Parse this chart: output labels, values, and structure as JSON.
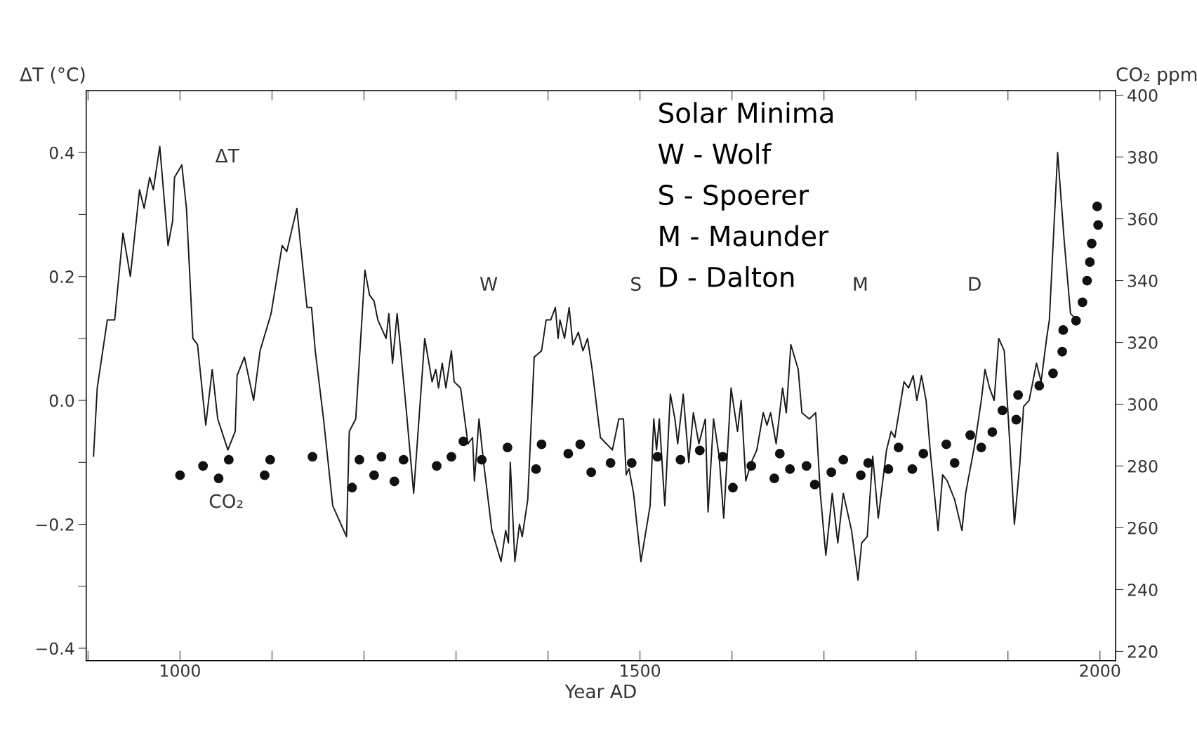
{
  "chart_data": {
    "type": "line",
    "xlabel": "Year AD",
    "ylabel": "ΔT (°C)",
    "y2label": "CO₂ ppm",
    "xlim": [
      898,
      2017
    ],
    "xticks": [
      {
        "value": 900,
        "label": null
      },
      1000,
      {
        "value": 1100,
        "label": null
      },
      {
        "value": 1200,
        "label": null
      },
      {
        "value": 1300,
        "label": null
      },
      {
        "value": 1400,
        "label": null
      },
      1500,
      {
        "value": 1600,
        "label": null
      },
      {
        "value": 1700,
        "label": null
      },
      {
        "value": 1800,
        "label": null
      },
      {
        "value": 1900,
        "label": null
      },
      2000
    ],
    "ylim": [
      -0.42,
      0.5
    ],
    "yticks": [
      {
        "value": -0.4,
        "label": "−0.4"
      },
      {
        "value": -0.3,
        "label": null
      },
      {
        "value": -0.2,
        "label": "−0.2"
      },
      {
        "value": -0.1,
        "label": null
      },
      {
        "value": 0.0,
        "label": "0.0"
      },
      {
        "value": 0.1,
        "label": null
      },
      {
        "value": 0.2,
        "label": "0.2"
      },
      {
        "value": 0.3,
        "label": null
      },
      {
        "value": 0.4,
        "label": "0.4"
      }
    ],
    "y2lim": [
      217,
      401.5
    ],
    "y2ticks": [
      220,
      240,
      260,
      280,
      300,
      320,
      340,
      360,
      380,
      400
    ],
    "grid": false,
    "legend": false,
    "series": [
      {
        "name": "ΔT",
        "color": "#1a1a1a",
        "line_style": "solid",
        "marker": "none",
        "x": [
          906,
          910,
          921,
          929,
          938,
          946,
          956,
          961,
          967,
          971,
          978,
          987,
          992,
          994,
          1002,
          1007,
          1014,
          1019,
          1028,
          1035,
          1041,
          1052,
          1060,
          1062,
          1070,
          1080,
          1087,
          1099,
          1111,
          1116,
          1127,
          1138,
          1143,
          1147,
          1156,
          1166,
          1181,
          1184,
          1191,
          1201,
          1206,
          1211,
          1215,
          1224,
          1227,
          1231,
          1236,
          1245,
          1254,
          1266,
          1274,
          1278,
          1281,
          1285,
          1289,
          1295,
          1298,
          1305,
          1313,
          1318,
          1320,
          1325,
          1330,
          1339,
          1349,
          1354,
          1357,
          1359,
          1364,
          1369,
          1372,
          1378,
          1385,
          1393,
          1398,
          1403,
          1408,
          1411,
          1413,
          1418,
          1423,
          1427,
          1433,
          1438,
          1443,
          1448,
          1457,
          1470,
          1477,
          1482,
          1485,
          1488,
          1493,
          1501,
          1511,
          1515,
          1518,
          1521,
          1527,
          1533,
          1538,
          1541,
          1547,
          1553,
          1558,
          1564,
          1571,
          1574,
          1580,
          1586,
          1591,
          1599,
          1606,
          1610,
          1615,
          1621,
          1627,
          1634,
          1638,
          1642,
          1648,
          1655,
          1659,
          1664,
          1672,
          1676,
          1684,
          1691,
          1696,
          1702,
          1709,
          1715,
          1721,
          1730,
          1737,
          1741,
          1747,
          1753,
          1759,
          1768,
          1773,
          1777,
          1787,
          1792,
          1797,
          1801,
          1806,
          1811,
          1816,
          1824,
          1829,
          1834,
          1842,
          1850,
          1854,
          1864,
          1871,
          1875,
          1880,
          1885,
          1890,
          1896,
          1902,
          1907,
          1913,
          1917,
          1923,
          1931,
          1936,
          1942,
          1945,
          1954,
          1961,
          1968,
          1975
        ],
        "values": [
          -0.09,
          0.02,
          0.13,
          0.13,
          0.27,
          0.2,
          0.34,
          0.31,
          0.36,
          0.34,
          0.41,
          0.25,
          0.29,
          0.36,
          0.38,
          0.31,
          0.1,
          0.09,
          -0.04,
          0.05,
          -0.03,
          -0.08,
          -0.05,
          0.04,
          0.07,
          0.0,
          0.08,
          0.14,
          0.25,
          0.24,
          0.31,
          0.15,
          0.15,
          0.08,
          -0.03,
          -0.17,
          -0.22,
          -0.05,
          -0.03,
          0.21,
          0.17,
          0.16,
          0.13,
          0.1,
          0.14,
          0.06,
          0.14,
          0.0,
          -0.15,
          0.1,
          0.03,
          0.05,
          0.02,
          0.06,
          0.02,
          0.08,
          0.03,
          0.02,
          -0.07,
          -0.06,
          -0.13,
          -0.03,
          -0.1,
          -0.21,
          -0.26,
          -0.21,
          -0.23,
          -0.1,
          -0.26,
          -0.2,
          -0.22,
          -0.16,
          0.07,
          0.08,
          0.13,
          0.13,
          0.15,
          0.1,
          0.13,
          0.1,
          0.15,
          0.09,
          0.11,
          0.08,
          0.1,
          0.05,
          -0.06,
          -0.08,
          -0.03,
          -0.03,
          -0.12,
          -0.11,
          -0.15,
          -0.26,
          -0.17,
          -0.03,
          -0.08,
          -0.03,
          -0.17,
          0.01,
          -0.03,
          -0.07,
          0.01,
          -0.1,
          -0.02,
          -0.07,
          -0.03,
          -0.18,
          -0.03,
          -0.09,
          -0.19,
          0.02,
          -0.05,
          0.0,
          -0.13,
          -0.1,
          -0.08,
          -0.02,
          -0.04,
          -0.02,
          -0.07,
          0.02,
          -0.02,
          0.09,
          0.05,
          -0.02,
          -0.03,
          -0.02,
          -0.15,
          -0.25,
          -0.15,
          -0.23,
          -0.15,
          -0.21,
          -0.29,
          -0.23,
          -0.22,
          -0.09,
          -0.19,
          -0.08,
          -0.05,
          -0.06,
          0.03,
          0.02,
          0.04,
          0.0,
          0.04,
          0.0,
          -0.09,
          -0.21,
          -0.12,
          -0.13,
          -0.16,
          -0.21,
          -0.15,
          -0.07,
          0.0,
          0.05,
          0.02,
          0.0,
          0.1,
          0.08,
          -0.07,
          -0.2,
          -0.1,
          -0.01,
          0.0,
          0.06,
          0.03,
          0.1,
          0.13,
          0.4,
          0.26,
          0.14,
          0.13
        ]
      },
      {
        "name": "CO₂",
        "type": "scatter",
        "axis": "y2",
        "color": "#111111",
        "marker": "circle",
        "x": [
          1000,
          1025,
          1042,
          1053,
          1092,
          1098,
          1144,
          1187,
          1195,
          1211,
          1219,
          1233,
          1243,
          1279,
          1295,
          1308,
          1328,
          1356,
          1387,
          1393,
          1422,
          1435,
          1447,
          1468,
          1491,
          1519,
          1544,
          1565,
          1590,
          1601,
          1621,
          1646,
          1652,
          1663,
          1681,
          1690,
          1708,
          1721,
          1740,
          1748,
          1770,
          1781,
          1796,
          1808,
          1833,
          1842,
          1859,
          1871,
          1883,
          1894,
          1909,
          1911,
          1934,
          1949,
          1959,
          1960,
          1974,
          1981,
          1986,
          1989,
          1991,
          1997,
          1998
        ],
        "values": [
          277,
          280,
          276,
          282,
          277,
          282,
          283,
          273,
          282,
          277,
          283,
          275,
          282,
          280,
          283,
          288,
          282,
          286,
          279,
          287,
          284,
          287,
          278,
          281,
          281,
          283,
          282,
          285,
          283,
          273,
          280,
          276,
          284,
          279,
          280,
          274,
          278,
          282,
          277,
          281,
          279,
          286,
          279,
          284,
          287,
          281,
          290,
          286,
          291,
          298,
          295,
          303,
          306,
          310,
          317,
          324,
          327,
          333,
          340,
          346,
          352,
          364,
          358
        ]
      }
    ],
    "annotations": [
      "W",
      "S",
      "M",
      "D",
      "Solar Minima",
      "W - Wolf",
      "S - Spoerer",
      "M - Maunder",
      "D - Dalton"
    ]
  }
}
